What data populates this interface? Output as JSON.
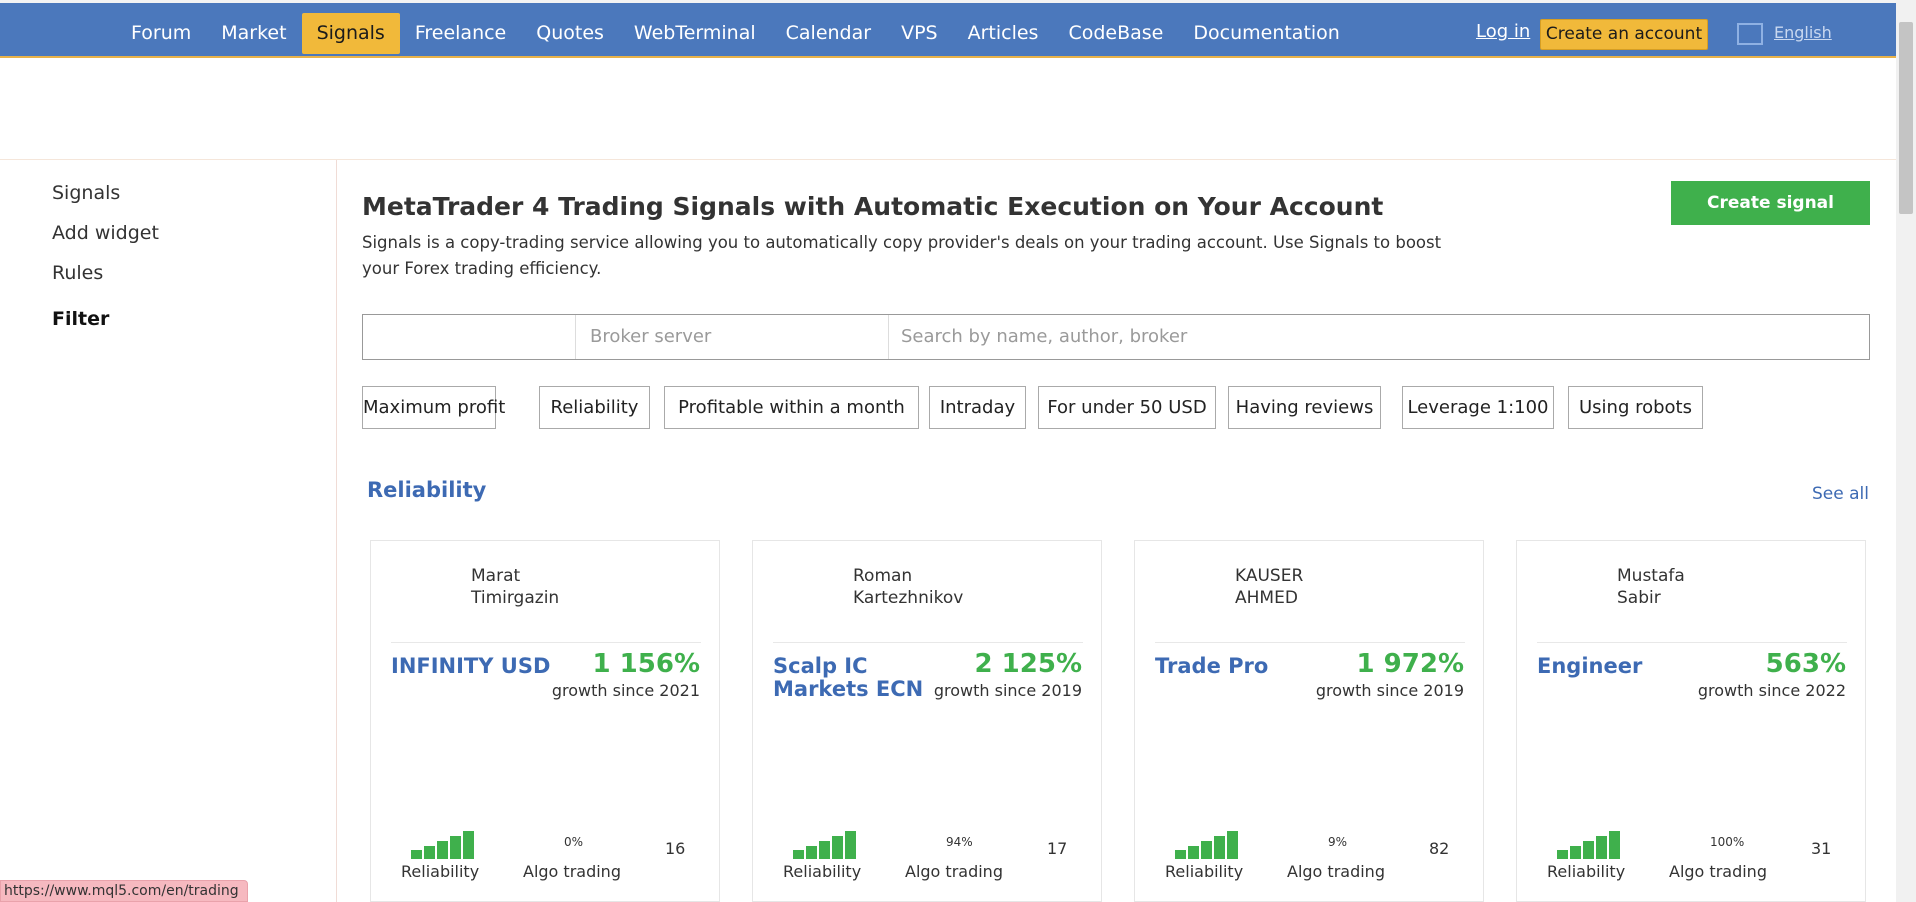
{
  "nav": {
    "items": [
      "Forum",
      "Market",
      "Signals",
      "Freelance",
      "Quotes",
      "WebTerminal",
      "Calendar",
      "VPS",
      "Articles",
      "CodeBase",
      "Documentation"
    ],
    "active": "Signals",
    "login": "Log in",
    "create_account": "Create an account",
    "language": "English"
  },
  "sidebar": {
    "links": [
      "Signals",
      "Add widget",
      "Rules"
    ],
    "filter": "Filter"
  },
  "main": {
    "title": "MetaTrader 4 Trading Signals with Automatic Execution on Your Account",
    "description": "Signals is a copy-trading service allowing you to automatically copy provider's deals on your trading account. Use Signals to boost your Forex trading efficiency.",
    "create_signal": "Create signal",
    "search": {
      "broker_placeholder": "Broker server",
      "query_placeholder": "Search by name, author, broker"
    },
    "chips": [
      "Maximum profit",
      "Reliability",
      "Profitable within a month",
      "Intraday",
      "For under 50 USD",
      "Having reviews",
      "Leverage 1:100",
      "Using robots"
    ],
    "section": {
      "title": "Reliability",
      "see_all": "See all"
    },
    "cards": [
      {
        "author_first": "Marat",
        "author_last": "Timirgazin",
        "name": "INFINITY USD",
        "growth": "1 156%",
        "growth_label": "growth since 2021",
        "reliability_label": "Reliability",
        "algo_value": "0%",
        "algo_label": "Algo trading",
        "count": "16"
      },
      {
        "author_first": "Roman",
        "author_last": "Kartezhnikov",
        "name": "Scalp IC Markets ECN",
        "growth": "2 125%",
        "growth_label": "growth since 2019",
        "reliability_label": "Reliability",
        "algo_value": "94%",
        "algo_label": "Algo trading",
        "count": "17"
      },
      {
        "author_first": "KAUSER",
        "author_last": "AHMED",
        "name": "Trade Pro",
        "growth": "1 972%",
        "growth_label": "growth since 2019",
        "reliability_label": "Reliability",
        "algo_value": "9%",
        "algo_label": "Algo trading",
        "count": "82"
      },
      {
        "author_first": "Mustafa",
        "author_last": "Sabir",
        "name": "Engineer",
        "growth": "563%",
        "growth_label": "growth since 2022",
        "reliability_label": "Reliability",
        "algo_value": "100%",
        "algo_label": "Algo trading",
        "count": "31"
      }
    ]
  },
  "status_url": "https://www.mql5.com/en/trading",
  "colors": {
    "nav_bg": "#4b78bc",
    "accent_yellow": "#f1b93a",
    "accent_green": "#3fb04c",
    "link_blue": "#3d6ab3"
  }
}
